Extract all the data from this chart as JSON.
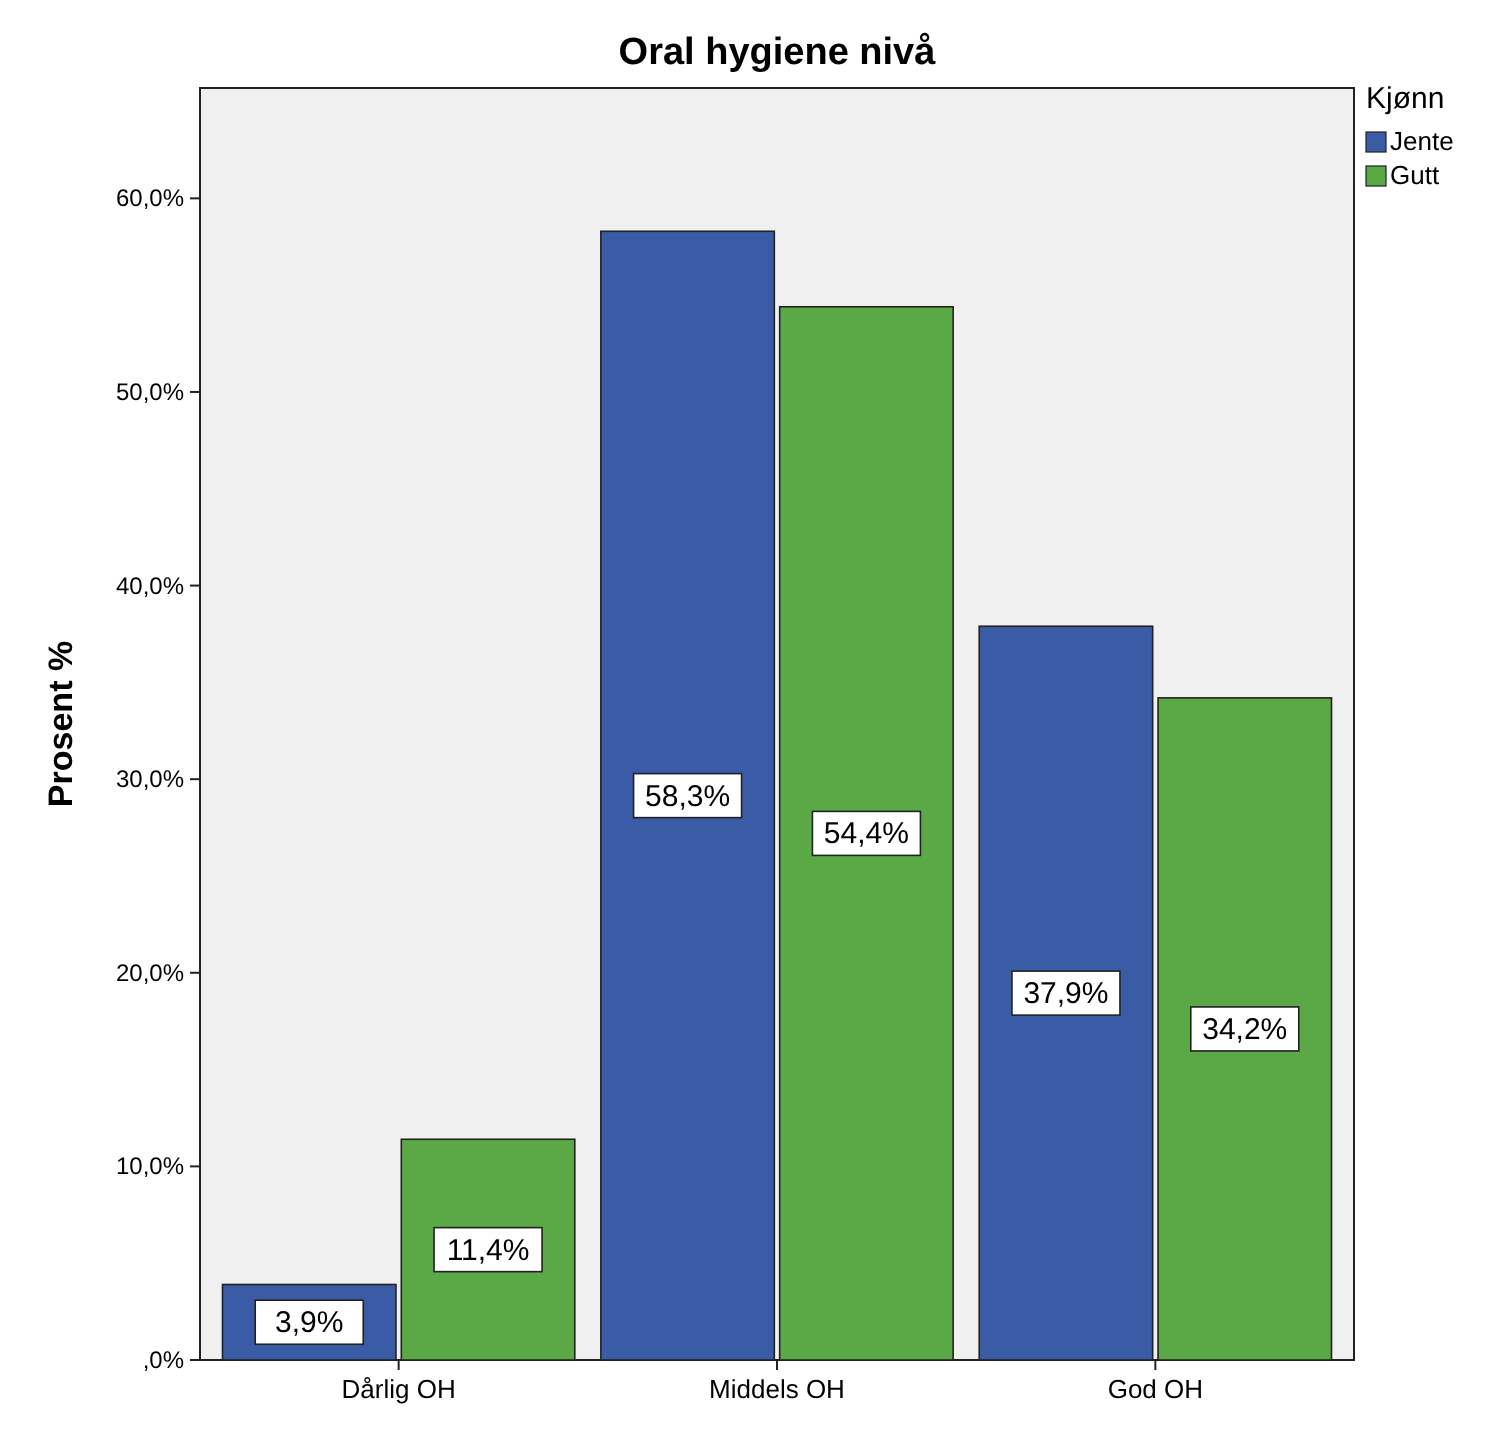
{
  "chart_data": {
    "type": "bar",
    "title": "Oral hygiene nivå",
    "ylabel": "Prosent %",
    "categories": [
      "Dårlig OH",
      "Middels OH",
      "God OH"
    ],
    "series": [
      {
        "name": "Jente",
        "color": "#3a5ba6",
        "values": [
          3.9,
          58.3,
          37.9
        ],
        "value_labels": [
          "3,9%",
          "58,3%",
          "37,9%"
        ]
      },
      {
        "name": "Gutt",
        "color": "#5aa846",
        "values": [
          11.4,
          54.4,
          34.2
        ],
        "value_labels": [
          "11,4%",
          "54,4%",
          "34,2%"
        ]
      }
    ],
    "ylim": [
      0,
      65.7
    ],
    "yticks": [
      {
        "value": 0,
        "label": ",0%"
      },
      {
        "value": 10,
        "label": "10,0%"
      },
      {
        "value": 20,
        "label": "20,0%"
      },
      {
        "value": 30,
        "label": "30,0%"
      },
      {
        "value": 40,
        "label": "40,0%"
      },
      {
        "value": 50,
        "label": "50,0%"
      },
      {
        "value": 60,
        "label": "60,0%"
      }
    ],
    "legend_title": "Kjønn",
    "legend": "top right",
    "grid": false
  }
}
